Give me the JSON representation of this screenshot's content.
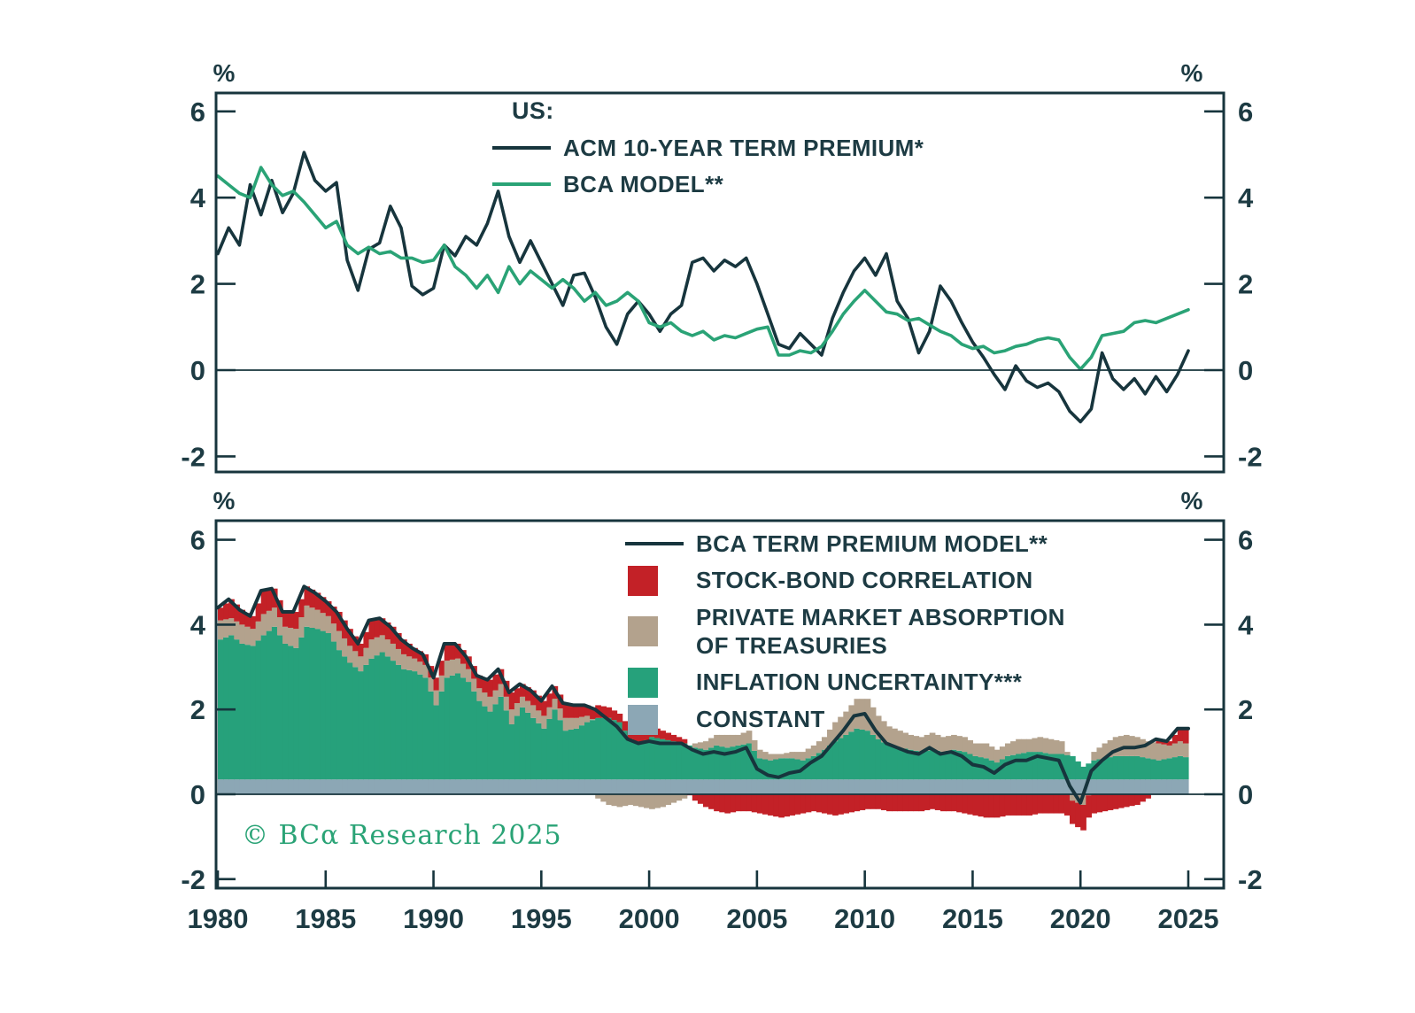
{
  "colors": {
    "background": "#ffffff",
    "axis": "#17353d",
    "text": "#1d3b43",
    "acm_line": "#17353d",
    "bca_line": "#2aa376",
    "model_line": "#17353d",
    "correlation": "#c32127",
    "absorption": "#b3a28d",
    "inflation": "#26a17b",
    "constant": "#8ca7b5",
    "copyright": "#2aa376"
  },
  "top_chart": {
    "legend": {
      "title": "US:",
      "series1": "ACM 10-YEAR TERM PREMIUM*",
      "series2": "BCA MODEL**"
    },
    "left_unit": "%",
    "right_unit": "%"
  },
  "bottom_chart": {
    "legend": {
      "model": "BCA TERM PREMIUM MODEL**",
      "correlation": "STOCK-BOND CORRELATION",
      "absorption_line1": "PRIVATE MARKET ABSORPTION",
      "absorption_line2": "OF TREASURIES",
      "inflation": "INFLATION UNCERTAINTY***",
      "constant": "CONSTANT"
    },
    "left_unit": "%",
    "right_unit": "%"
  },
  "copyright": "© BCα Research 2025",
  "chart_data": [
    {
      "panel": "top",
      "type": "line",
      "x_start": 1980,
      "x_step": 0.5,
      "ylim": [
        -2.35,
        6.45
      ],
      "yticks": [
        6,
        4,
        2,
        0,
        -2
      ],
      "xticks": [
        1980,
        1985,
        1990,
        1995,
        2000,
        2005,
        2010,
        2015,
        2020,
        2025
      ],
      "xtick_labels_shown": false,
      "grid": false,
      "legend_position": "top-center-inside",
      "series": [
        {
          "name": "ACM 10-YEAR TERM PREMIUM*",
          "color_key": "acm_line",
          "values": [
            2.7,
            3.3,
            2.9,
            4.3,
            3.6,
            4.4,
            3.65,
            4.1,
            5.05,
            4.4,
            4.15,
            4.35,
            2.55,
            1.85,
            2.8,
            2.95,
            3.8,
            3.3,
            1.95,
            1.75,
            1.9,
            2.9,
            2.65,
            3.1,
            2.9,
            3.4,
            4.15,
            3.1,
            2.5,
            3.0,
            2.5,
            2.0,
            1.5,
            2.2,
            2.25,
            1.7,
            1.0,
            0.6,
            1.3,
            1.6,
            1.3,
            0.9,
            1.3,
            1.5,
            2.5,
            2.6,
            2.3,
            2.55,
            2.4,
            2.6,
            2.0,
            1.3,
            0.6,
            0.5,
            0.85,
            0.6,
            0.35,
            1.2,
            1.8,
            2.3,
            2.6,
            2.2,
            2.7,
            1.6,
            1.2,
            0.4,
            0.9,
            1.95,
            1.6,
            1.1,
            0.65,
            0.3,
            -0.1,
            -0.45,
            0.1,
            -0.25,
            -0.4,
            -0.3,
            -0.5,
            -0.95,
            -1.2,
            -0.9,
            0.4,
            -0.2,
            -0.45,
            -0.2,
            -0.55,
            -0.15,
            -0.5,
            -0.1,
            0.45
          ]
        },
        {
          "name": "BCA MODEL**",
          "color_key": "bca_line",
          "values": [
            4.5,
            4.3,
            4.1,
            4.0,
            4.7,
            4.3,
            4.05,
            4.15,
            3.9,
            3.6,
            3.3,
            3.45,
            2.9,
            2.7,
            2.85,
            2.7,
            2.75,
            2.6,
            2.6,
            2.5,
            2.55,
            2.9,
            2.4,
            2.2,
            1.9,
            2.2,
            1.8,
            2.4,
            2.0,
            2.3,
            2.1,
            1.9,
            2.1,
            1.9,
            1.6,
            1.8,
            1.5,
            1.6,
            1.8,
            1.6,
            1.1,
            1.0,
            1.1,
            0.9,
            0.8,
            0.9,
            0.7,
            0.8,
            0.75,
            0.85,
            0.95,
            1.0,
            0.35,
            0.35,
            0.45,
            0.4,
            0.55,
            0.9,
            1.3,
            1.6,
            1.85,
            1.6,
            1.35,
            1.3,
            1.15,
            1.2,
            1.05,
            0.9,
            0.8,
            0.6,
            0.5,
            0.55,
            0.4,
            0.45,
            0.55,
            0.6,
            0.7,
            0.75,
            0.7,
            0.3,
            0.02,
            0.3,
            0.8,
            0.85,
            0.9,
            1.1,
            1.15,
            1.1,
            1.2,
            1.3,
            1.4
          ]
        }
      ]
    },
    {
      "panel": "bottom",
      "type": "stacked_bar_with_line",
      "x_start": 1980,
      "x_step": 0.5,
      "ylim": [
        -2.3,
        6.45
      ],
      "yticks": [
        6,
        4,
        2,
        0,
        -2
      ],
      "xticks": [
        1980,
        1985,
        1990,
        1995,
        2000,
        2005,
        2010,
        2015,
        2020,
        2025
      ],
      "xtick_labels": [
        "1980",
        "1985",
        "1990",
        "1995",
        "2000",
        "2005",
        "2010",
        "2015",
        "2020",
        "2025"
      ],
      "grid": false,
      "legend_position": "top-center-inside",
      "constant_value": 0.35,
      "series": [
        {
          "name": "INFLATION UNCERTAINTY***",
          "color_key": "inflation",
          "values": [
            3.3,
            3.4,
            3.2,
            3.15,
            3.4,
            3.6,
            3.2,
            3.1,
            3.6,
            3.55,
            3.45,
            3.05,
            2.75,
            2.55,
            2.85,
            3.0,
            2.8,
            2.6,
            2.55,
            2.4,
            1.75,
            2.4,
            2.5,
            2.3,
            1.85,
            1.6,
            1.95,
            1.3,
            1.7,
            1.45,
            1.2,
            1.65,
            1.15,
            1.2,
            1.35,
            1.45,
            1.45,
            1.35,
            0.95,
            0.85,
            1.0,
            0.95,
            0.9,
            0.85,
            0.75,
            0.7,
            0.8,
            0.75,
            0.8,
            0.85,
            0.5,
            0.45,
            0.5,
            0.5,
            0.45,
            0.55,
            0.7,
            0.9,
            1.05,
            1.2,
            1.15,
            0.95,
            0.8,
            0.75,
            0.7,
            0.65,
            0.7,
            0.65,
            0.7,
            0.65,
            0.55,
            0.5,
            0.4,
            0.55,
            0.6,
            0.65,
            0.65,
            0.6,
            0.6,
            0.55,
            0.3,
            0.45,
            0.5,
            0.55,
            0.55,
            0.55,
            0.5,
            0.45,
            0.5,
            0.55,
            0.5
          ]
        },
        {
          "name": "PRIVATE MARKET ABSORPTION OF TREASURIES",
          "color_key": "absorption",
          "values": [
            0.45,
            0.4,
            0.45,
            0.4,
            0.5,
            0.45,
            0.4,
            0.45,
            0.5,
            0.45,
            0.4,
            0.45,
            0.4,
            0.35,
            0.45,
            0.4,
            0.4,
            0.35,
            0.3,
            0.3,
            0.35,
            0.4,
            0.35,
            0.3,
            0.3,
            0.35,
            0.3,
            0.35,
            0.25,
            0.3,
            0.3,
            0.25,
            0.3,
            0.25,
            0.15,
            -0.1,
            -0.25,
            -0.3,
            -0.25,
            -0.3,
            -0.35,
            -0.3,
            -0.2,
            -0.1,
            0.1,
            0.2,
            0.25,
            0.3,
            0.25,
            0.3,
            0.2,
            0.15,
            0.1,
            0.15,
            0.2,
            0.25,
            0.3,
            0.45,
            0.55,
            0.7,
            0.75,
            0.55,
            0.45,
            0.4,
            0.35,
            0.35,
            0.4,
            0.35,
            0.35,
            0.35,
            0.3,
            0.35,
            0.3,
            0.3,
            0.35,
            0.3,
            0.35,
            0.35,
            0.3,
            -0.15,
            -0.25,
            0.2,
            0.35,
            0.45,
            0.5,
            0.45,
            0.4,
            0.4,
            0.3,
            0.35,
            0.3
          ]
        },
        {
          "name": "STOCK-BOND CORRELATION",
          "color_key": "correlation",
          "values": [
            0.3,
            0.45,
            0.35,
            0.3,
            0.55,
            0.45,
            0.35,
            0.4,
            0.45,
            0.4,
            0.35,
            0.45,
            0.4,
            0.3,
            0.45,
            0.4,
            0.4,
            0.35,
            0.25,
            0.25,
            0.3,
            0.4,
            0.35,
            0.3,
            0.3,
            0.4,
            0.35,
            0.4,
            0.3,
            0.35,
            0.35,
            0.3,
            0.35,
            0.3,
            0.25,
            0.3,
            0.25,
            0.2,
            0.25,
            0.3,
            0.25,
            0.2,
            0.15,
            0.1,
            -0.15,
            -0.3,
            -0.4,
            -0.45,
            -0.4,
            -0.4,
            -0.45,
            -0.5,
            -0.55,
            -0.5,
            -0.45,
            -0.4,
            -0.45,
            -0.5,
            -0.45,
            -0.4,
            -0.35,
            -0.35,
            -0.4,
            -0.4,
            -0.4,
            -0.4,
            -0.35,
            -0.4,
            -0.4,
            -0.45,
            -0.5,
            -0.55,
            -0.55,
            -0.5,
            -0.5,
            -0.5,
            -0.45,
            -0.45,
            -0.45,
            -0.55,
            -0.6,
            -0.45,
            -0.4,
            -0.35,
            -0.3,
            -0.25,
            -0.1,
            0.1,
            0.1,
            0.3,
            0.4
          ]
        }
      ],
      "line": {
        "name": "BCA TERM PREMIUM MODEL**",
        "color_key": "model_line",
        "derived": "constant_value + sum(series values)"
      }
    }
  ]
}
